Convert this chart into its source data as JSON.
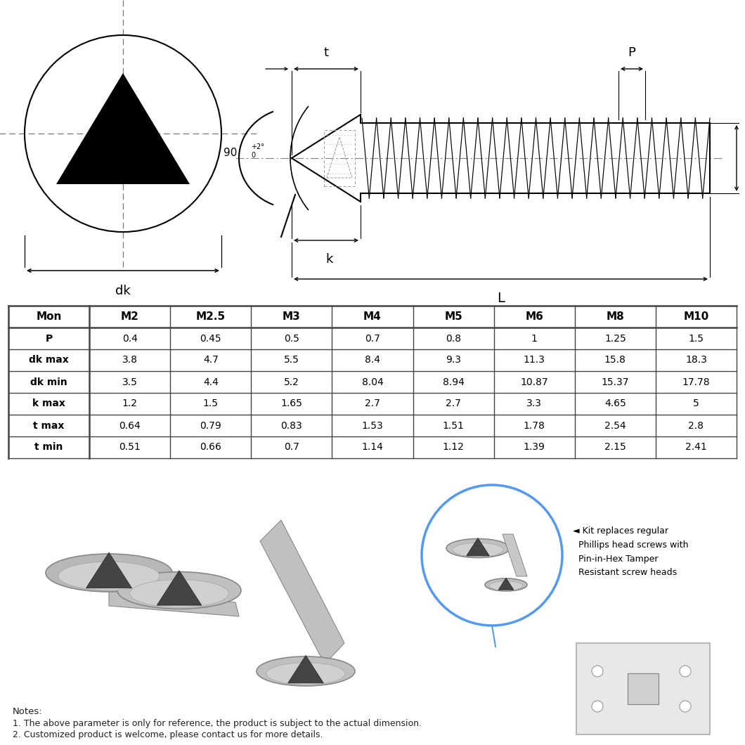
{
  "table_headers": [
    "Mon",
    "M2",
    "M2.5",
    "M3",
    "M4",
    "M5",
    "M6",
    "M8",
    "M10"
  ],
  "table_rows": [
    [
      "P",
      "0.4",
      "0.45",
      "0.5",
      "0.7",
      "0.8",
      "1",
      "1.25",
      "1.5"
    ],
    [
      "dk max",
      "3.8",
      "4.7",
      "5.5",
      "8.4",
      "9.3",
      "11.3",
      "15.8",
      "18.3"
    ],
    [
      "dk min",
      "3.5",
      "4.4",
      "5.2",
      "8.04",
      "8.94",
      "10.87",
      "15.37",
      "17.78"
    ],
    [
      "k max",
      "1.2",
      "1.5",
      "1.65",
      "2.7",
      "2.7",
      "3.3",
      "4.65",
      "5"
    ],
    [
      "t max",
      "0.64",
      "0.79",
      "0.83",
      "1.53",
      "1.51",
      "1.78",
      "2.54",
      "2.8"
    ],
    [
      "t min",
      "0.51",
      "0.66",
      "0.7",
      "1.14",
      "1.12",
      "1.39",
      "2.15",
      "2.41"
    ]
  ],
  "notes": [
    "Notes:",
    "1. The above parameter is only for reference, the product is subject to the actual dimension.",
    "2. Customized product is welcome, please contact us for more details."
  ],
  "bg_color": "#ffffff",
  "line_color": "#000000",
  "table_border_color": "#444444",
  "dim_color": "#333333"
}
